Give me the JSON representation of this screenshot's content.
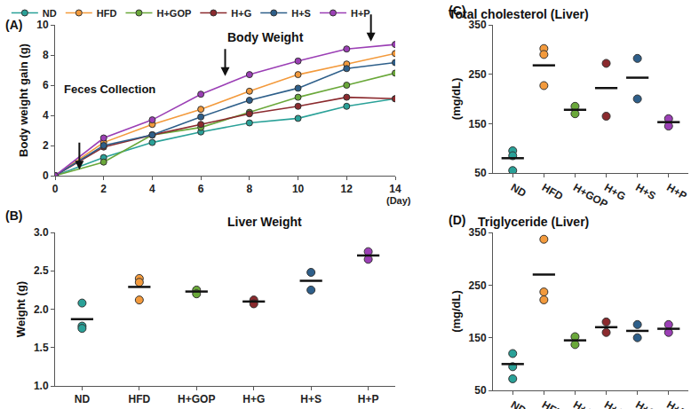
{
  "chart_data": [
    {
      "type": "line",
      "panel": "(A)",
      "title": "Body Weight",
      "xlabel": "(Day)",
      "ylabel": "Body weight gain (g)",
      "x": [
        0,
        2,
        4,
        6,
        8,
        10,
        12,
        14
      ],
      "xlim": [
        0,
        14
      ],
      "xticks": [
        0,
        2,
        4,
        6,
        8,
        10,
        12,
        14
      ],
      "ylim": [
        0,
        10
      ],
      "yticks": [
        0,
        2,
        4,
        6,
        8,
        10
      ],
      "grid": false,
      "legend": "top left",
      "marker": "circle",
      "series": [
        {
          "name": "ND",
          "color": "#2aa198",
          "values": [
            0,
            1.2,
            2.2,
            2.9,
            3.5,
            3.8,
            4.6,
            5.1
          ]
        },
        {
          "name": "HFD",
          "color": "#f39a3c",
          "values": [
            0,
            2.2,
            3.4,
            4.4,
            5.6,
            6.7,
            7.4,
            8.1
          ]
        },
        {
          "name": "H+GOP",
          "color": "#6aa83a",
          "values": [
            0,
            0.9,
            2.7,
            3.2,
            4.2,
            5.2,
            6.0,
            6.8
          ]
        },
        {
          "name": "H+G",
          "color": "#8b2a2e",
          "values": [
            0,
            1.9,
            2.7,
            3.4,
            4.1,
            4.6,
            5.2,
            5.1
          ]
        },
        {
          "name": "H+S",
          "color": "#2e5f8a",
          "values": [
            0,
            2.0,
            2.7,
            3.9,
            5.0,
            5.8,
            7.1,
            7.5
          ]
        },
        {
          "name": "H+P",
          "color": "#9b3fb5",
          "values": [
            0,
            2.5,
            3.7,
            5.4,
            6.7,
            7.6,
            8.4,
            8.7
          ]
        }
      ],
      "annotations": [
        {
          "text": "Feces Collection",
          "x": 0.3,
          "y": 5.2
        }
      ],
      "arrows": [
        {
          "x": 1,
          "y": 0.4
        },
        {
          "x": 7,
          "y": 6.6
        },
        {
          "x": 13,
          "y": 8.9
        }
      ]
    },
    {
      "type": "dot",
      "panel": "(B)",
      "title": "Liver Weight",
      "ylabel": "Weight (g)",
      "categories": [
        "ND",
        "HFD",
        "H+GOP",
        "H+G",
        "H+S",
        "H+P"
      ],
      "colors": [
        "#2aa198",
        "#f39a3c",
        "#6aa83a",
        "#8b2a2e",
        "#2e5f8a",
        "#9b3fb5"
      ],
      "points": [
        [
          2.08,
          1.78,
          1.75
        ],
        [
          2.4,
          2.35,
          2.12
        ],
        [
          2.25,
          2.2
        ],
        [
          2.12,
          2.07
        ],
        [
          2.48,
          2.25
        ],
        [
          2.75,
          2.65
        ]
      ],
      "means": [
        1.87,
        2.29,
        2.23,
        2.1,
        2.37,
        2.7
      ],
      "ylim": [
        1.0,
        3.0
      ],
      "yticks": [
        {
          "value": 1.0,
          "label": "1.0"
        },
        1.5,
        {
          "value": 2.0,
          "label": "2.0"
        },
        2.5,
        {
          "value": 3.0,
          "label": "3.0"
        }
      ],
      "grid": false
    },
    {
      "type": "dot",
      "panel": "(C)",
      "title": "Total cholesterol (Liver)",
      "ylabel": "(mg/dL)",
      "categories": [
        "ND",
        "HFD",
        "H+GOP",
        "H+G",
        "H+S",
        "H+P"
      ],
      "colors": [
        "#2aa198",
        "#f39a3c",
        "#6aa83a",
        "#8b2a2e",
        "#2e5f8a",
        "#9b3fb5"
      ],
      "points": [
        [
          95,
          85,
          55
        ],
        [
          302,
          290,
          227
        ],
        [
          185,
          170
        ],
        [
          272,
          165
        ],
        [
          282,
          200
        ],
        [
          160,
          145
        ]
      ],
      "means": [
        80,
        268,
        178,
        222,
        243,
        153
      ],
      "ylim": [
        50,
        350
      ],
      "yticks": [
        50,
        150,
        250,
        350
      ],
      "grid": false
    },
    {
      "type": "dot",
      "panel": "(D)",
      "title": "Triglyceride (Liver)",
      "ylabel": "(mg/dL)",
      "categories": [
        "ND",
        "HFD",
        "H+GOP",
        "H+G",
        "H+S",
        "H+P"
      ],
      "colors": [
        "#2aa198",
        "#f39a3c",
        "#6aa83a",
        "#8b2a2e",
        "#2e5f8a",
        "#9b3fb5"
      ],
      "points": [
        [
          120,
          95,
          72
        ],
        [
          337,
          237,
          222
        ],
        [
          152,
          137
        ],
        [
          180,
          160
        ],
        [
          175,
          150
        ],
        [
          175,
          160
        ]
      ],
      "means": [
        100,
        270,
        145,
        170,
        163,
        167
      ],
      "ylim": [
        50,
        350
      ],
      "yticks": [
        50,
        150,
        250,
        350
      ],
      "grid": false
    }
  ]
}
